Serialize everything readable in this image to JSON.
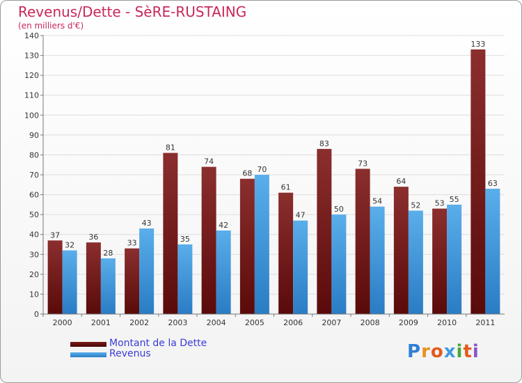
{
  "chart_data": {
    "type": "bar",
    "title": "Revenus/Dette - SèRE-RUSTAING",
    "subtitle": "(en milliers d'€)",
    "categories": [
      "2000",
      "2001",
      "2002",
      "2003",
      "2004",
      "2005",
      "2006",
      "2007",
      "2008",
      "2009",
      "2010",
      "2011"
    ],
    "series": [
      {
        "name": "Montant de la Dette",
        "color": "#7a1a1a",
        "values": [
          37,
          36,
          33,
          81,
          74,
          68,
          61,
          83,
          73,
          64,
          53,
          133
        ]
      },
      {
        "name": "Revenus",
        "color": "#3f9ae0",
        "values": [
          32,
          28,
          43,
          35,
          42,
          70,
          47,
          50,
          54,
          52,
          55,
          63
        ]
      }
    ],
    "ylim": [
      0,
      140
    ],
    "yticks": [
      0,
      10,
      20,
      30,
      40,
      50,
      60,
      70,
      80,
      90,
      100,
      110,
      120,
      130,
      140
    ],
    "grid": true,
    "legend_position": "bottom-left"
  },
  "logo": {
    "letters": [
      "P",
      "r",
      "o",
      "x",
      "i",
      "t",
      "i"
    ],
    "colors": [
      "#2f7fd6",
      "#e89020",
      "#e35a20",
      "#3f9ae0",
      "#44aa33",
      "#e35a20",
      "#8855cc"
    ]
  }
}
